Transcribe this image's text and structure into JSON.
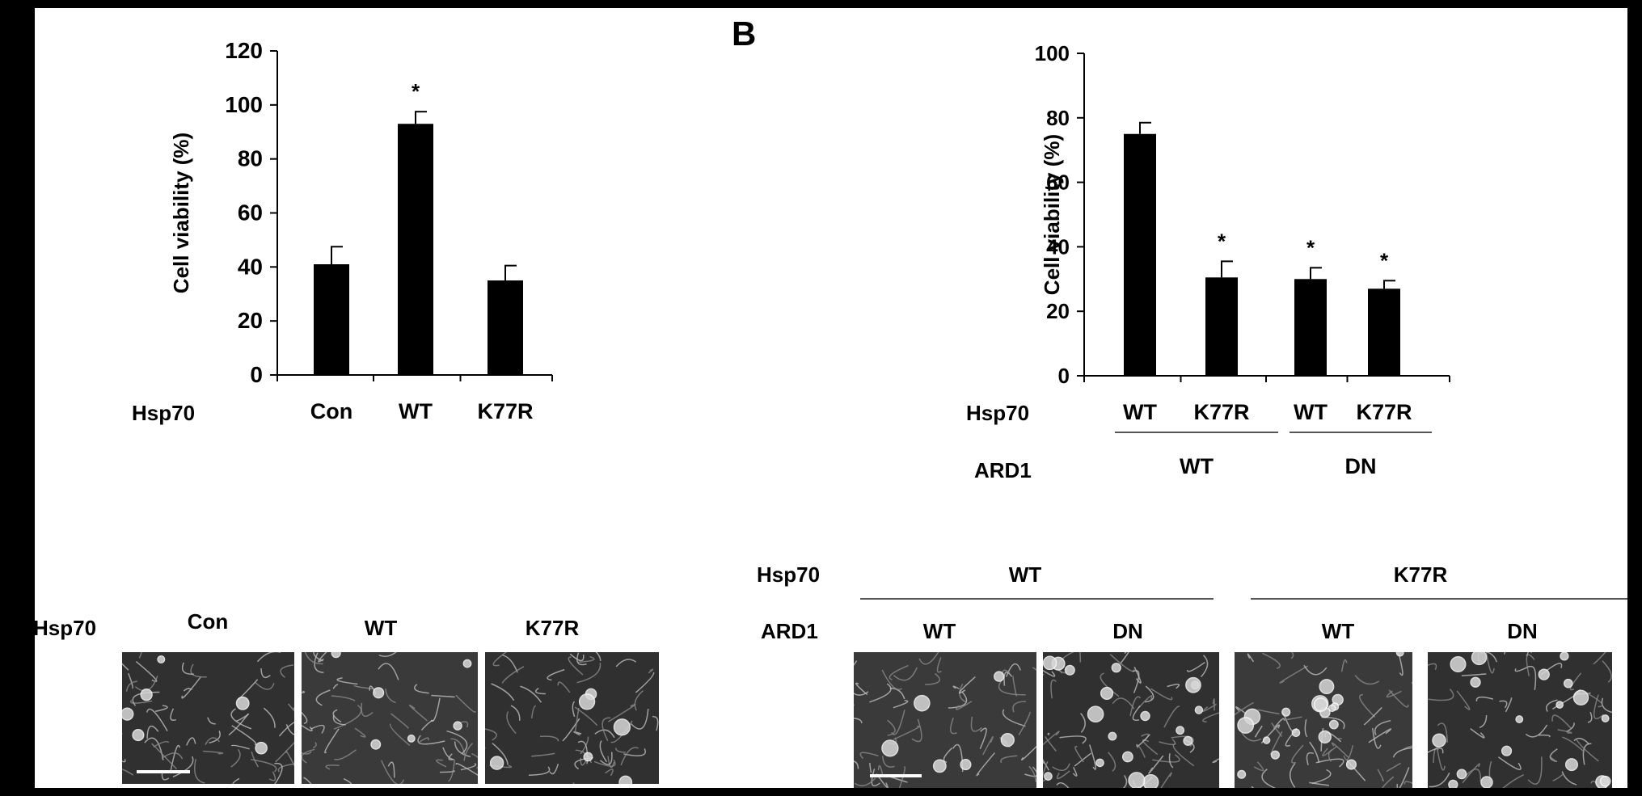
{
  "panel_b_letter": "B",
  "chart_data": [
    {
      "type": "bar",
      "id": "A",
      "row_label": "Hsp70",
      "categories": [
        "Con",
        "WT",
        "K77R"
      ],
      "values": [
        41,
        93,
        35
      ],
      "errors": [
        6.5,
        4.5,
        5.5
      ],
      "significance": [
        "",
        "*",
        ""
      ],
      "ylabel": "Cell viability (%)",
      "xlabel": "",
      "ylim": [
        0,
        120
      ],
      "yticks": [
        0,
        20,
        40,
        60,
        80,
        100,
        120
      ],
      "ytick_labels": [
        "0",
        "20",
        "40",
        "60",
        "80",
        "100",
        "120"
      ],
      "bar_color": "#000000"
    },
    {
      "type": "bar",
      "id": "B",
      "row_labels": [
        "Hsp70",
        "ARD1"
      ],
      "categories": [
        "WT",
        "K77R",
        "WT",
        "K77R"
      ],
      "values": [
        75,
        30.5,
        30,
        27
      ],
      "errors": [
        3.5,
        5,
        3.5,
        2.5
      ],
      "significance": [
        "",
        "*",
        "*",
        "*"
      ],
      "groups": [
        {
          "label": "WT",
          "span": [
            0,
            1
          ]
        },
        {
          "label": "DN",
          "span": [
            2,
            3
          ]
        }
      ],
      "ylabel": "Cell viability (%)",
      "xlabel": "",
      "ylim": [
        0,
        100
      ],
      "yticks": [
        0,
        20,
        40,
        60,
        80,
        100
      ],
      "ytick_labels": [
        "0",
        "20",
        "40",
        "60",
        "80",
        "100"
      ],
      "bar_color": "#000000"
    }
  ],
  "micrographs_a": {
    "row_label": "Hsp70",
    "labels": [
      "Con",
      "WT",
      "K77R"
    ]
  },
  "micrographs_b": {
    "hsp70_label": "Hsp70",
    "ard1_label": "ARD1",
    "hsp70_groups": [
      "WT",
      "K77R"
    ],
    "ard1_labels": [
      "WT",
      "DN",
      "WT",
      "DN"
    ]
  }
}
